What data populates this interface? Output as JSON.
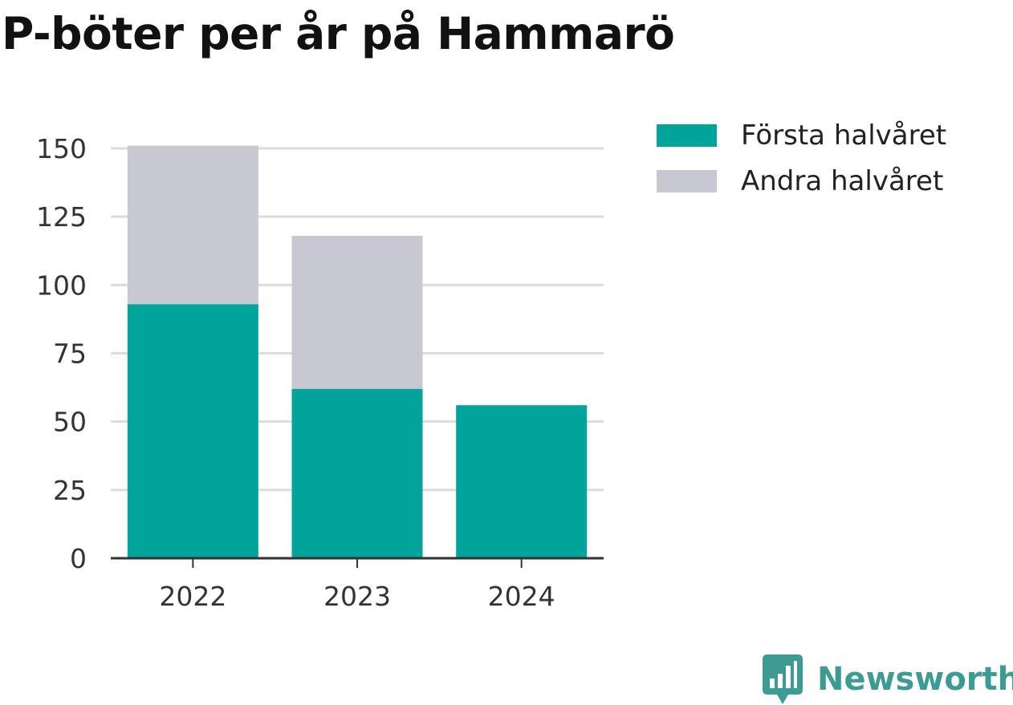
{
  "chart_data": {
    "type": "bar",
    "stacked": true,
    "title": "P-böter per år på Hammarö",
    "categories": [
      "2022",
      "2023",
      "2024"
    ],
    "series": [
      {
        "name": "Första halvåret",
        "color": "#00a49a",
        "values": [
          93,
          62,
          56
        ]
      },
      {
        "name": "Andra halvåret",
        "color": "#c8c8d2",
        "values": [
          58,
          56,
          0
        ]
      }
    ],
    "yticks": [
      0,
      25,
      50,
      75,
      100,
      125,
      150
    ],
    "ylim": [
      0,
      150
    ],
    "grid": true,
    "legend_position": "right"
  },
  "brand": {
    "name": "Newsworthy",
    "icon": "newsworthy-logo-icon",
    "color": "#3c9c94"
  }
}
